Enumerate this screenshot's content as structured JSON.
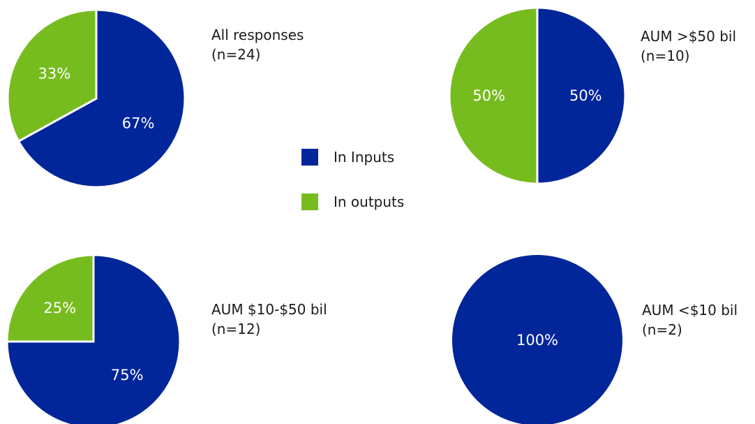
{
  "colors": {
    "in_inputs": "#00269A",
    "in_outputs": "#77BC1F"
  },
  "legend": [
    {
      "label": "In Inputs",
      "color": "#00269A"
    },
    {
      "label": "In outputs",
      "color": "#77BC1F"
    }
  ],
  "chart_data": [
    {
      "type": "pie",
      "caption_line1": "All responses",
      "caption_line2": "(n=24)",
      "slices": [
        {
          "series": "In Inputs",
          "value": 67,
          "label": "67%"
        },
        {
          "series": "In outputs",
          "value": 33,
          "label": "33%"
        }
      ]
    },
    {
      "type": "pie",
      "caption_line1": "AUM >$50 bil",
      "caption_line2": "(n=10)",
      "slices": [
        {
          "series": "In Inputs",
          "value": 50,
          "label": "50%"
        },
        {
          "series": "In outputs",
          "value": 50,
          "label": "50%"
        }
      ]
    },
    {
      "type": "pie",
      "caption_line1": "AUM $10-$50 bil",
      "caption_line2": "(n=12)",
      "slices": [
        {
          "series": "In Inputs",
          "value": 75,
          "label": "75%"
        },
        {
          "series": "In outputs",
          "value": 25,
          "label": "25%"
        }
      ]
    },
    {
      "type": "pie",
      "caption_line1": "AUM <$10 bil",
      "caption_line2": "(n=2)",
      "slices": [
        {
          "series": "In Inputs",
          "value": 100,
          "label": "100%"
        }
      ]
    }
  ]
}
